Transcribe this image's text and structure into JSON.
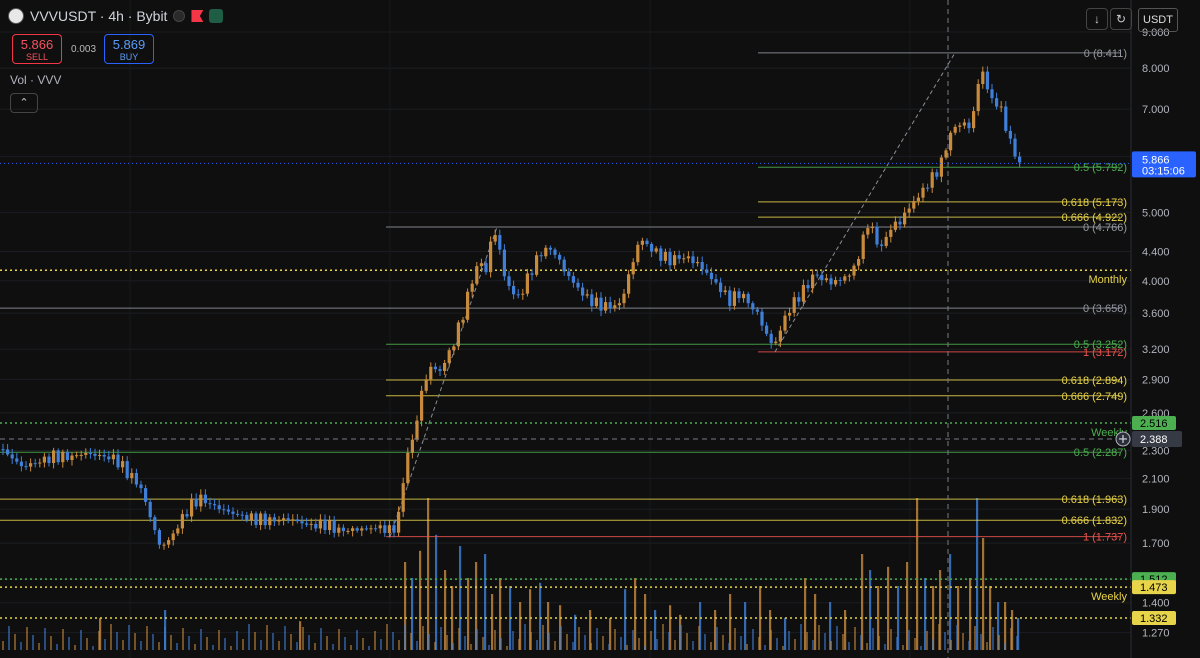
{
  "header": {
    "symbol": "VVVUSDT · 4h · Bybit"
  },
  "trade": {
    "sell_price": "5.866",
    "sell_label": "SELL",
    "spread": "0.003",
    "buy_price": "5.869",
    "buy_label": "BUY"
  },
  "vol_label": "Vol · VVV",
  "currency": "USDT",
  "colors": {
    "up": "#c88a3c",
    "down": "#3f7fd8",
    "gold": "#e8d44a",
    "green": "#4caf50",
    "red": "#ef5350",
    "gray": "#9598a1",
    "price": "#2962ff"
  },
  "chart_data": {
    "type": "candlestick",
    "ylim": [
      1.2,
      9.3
    ],
    "yscale": "log",
    "y_ticks": [
      "9.000",
      "8.000",
      "7.000",
      "6.000",
      "5.000",
      "4.400",
      "4.000",
      "3.600",
      "3.200",
      "2.900",
      "2.600",
      "2.300",
      "2.100",
      "1.900",
      "1.700",
      "1.512",
      "1.400",
      "1.270"
    ],
    "anchors": [
      [
        0,
        2.31
      ],
      [
        10,
        2.26
      ],
      [
        22,
        2.18
      ],
      [
        40,
        2.22
      ],
      [
        55,
        2.26
      ],
      [
        70,
        2.25
      ],
      [
        85,
        2.28
      ],
      [
        100,
        2.26
      ],
      [
        115,
        2.24
      ],
      [
        130,
        2.12
      ],
      [
        140,
        2.05
      ],
      [
        150,
        1.86
      ],
      [
        160,
        1.68
      ],
      [
        170,
        1.72
      ],
      [
        180,
        1.82
      ],
      [
        190,
        1.92
      ],
      [
        200,
        1.97
      ],
      [
        210,
        1.93
      ],
      [
        225,
        1.89
      ],
      [
        240,
        1.86
      ],
      [
        255,
        1.84
      ],
      [
        270,
        1.83
      ],
      [
        290,
        1.84
      ],
      [
        310,
        1.8
      ],
      [
        325,
        1.81
      ],
      [
        340,
        1.77
      ],
      [
        360,
        1.78
      ],
      [
        380,
        1.79
      ],
      [
        390,
        1.77
      ],
      [
        398,
        1.82
      ],
      [
        405,
        2.2
      ],
      [
        415,
        2.45
      ],
      [
        422,
        2.8
      ],
      [
        430,
        3.02
      ],
      [
        440,
        2.98
      ],
      [
        452,
        3.22
      ],
      [
        462,
        3.55
      ],
      [
        472,
        4.0
      ],
      [
        480,
        4.3
      ],
      [
        485,
        4.05
      ],
      [
        490,
        4.5
      ],
      [
        497,
        4.72
      ],
      [
        503,
        4.1
      ],
      [
        510,
        3.9
      ],
      [
        518,
        3.78
      ],
      [
        525,
        3.95
      ],
      [
        535,
        4.25
      ],
      [
        545,
        4.45
      ],
      [
        555,
        4.38
      ],
      [
        565,
        4.12
      ],
      [
        575,
        3.95
      ],
      [
        585,
        3.8
      ],
      [
        595,
        3.72
      ],
      [
        605,
        3.68
      ],
      [
        620,
        3.7
      ],
      [
        630,
        4.12
      ],
      [
        640,
        4.6
      ],
      [
        650,
        4.45
      ],
      [
        660,
        4.35
      ],
      [
        670,
        4.28
      ],
      [
        680,
        4.32
      ],
      [
        690,
        4.3
      ],
      [
        700,
        4.2
      ],
      [
        710,
        4.05
      ],
      [
        720,
        3.9
      ],
      [
        730,
        3.75
      ],
      [
        740,
        3.85
      ],
      [
        750,
        3.7
      ],
      [
        760,
        3.55
      ],
      [
        768,
        3.3
      ],
      [
        775,
        3.25
      ],
      [
        785,
        3.55
      ],
      [
        795,
        3.75
      ],
      [
        805,
        3.9
      ],
      [
        815,
        4.1
      ],
      [
        825,
        4.0
      ],
      [
        835,
        3.98
      ],
      [
        845,
        4.05
      ],
      [
        852,
        4.1
      ],
      [
        860,
        4.4
      ],
      [
        868,
        4.85
      ],
      [
        875,
        4.6
      ],
      [
        882,
        4.45
      ],
      [
        890,
        4.75
      ],
      [
        900,
        4.85
      ],
      [
        910,
        5.1
      ],
      [
        920,
        5.3
      ],
      [
        930,
        5.55
      ],
      [
        940,
        5.8
      ],
      [
        950,
        6.45
      ],
      [
        960,
        6.7
      ],
      [
        968,
        6.58
      ],
      [
        975,
        7.0
      ],
      [
        980,
        8.0
      ],
      [
        985,
        7.8
      ],
      [
        990,
        7.2
      ],
      [
        998,
        7.15
      ],
      [
        1005,
        6.7
      ],
      [
        1012,
        6.15
      ],
      [
        1020,
        5.87
      ]
    ],
    "volume": {
      "max": 1,
      "bars": [
        [
          100,
          0.2
        ],
        [
          165,
          0.25
        ],
        [
          300,
          0.18
        ],
        [
          405,
          0.55
        ],
        [
          412,
          0.45
        ],
        [
          420,
          0.62
        ],
        [
          428,
          0.95
        ],
        [
          436,
          0.72
        ],
        [
          445,
          0.5
        ],
        [
          452,
          0.4
        ],
        [
          460,
          0.65
        ],
        [
          468,
          0.45
        ],
        [
          476,
          0.55
        ],
        [
          485,
          0.6
        ],
        [
          492,
          0.35
        ],
        [
          500,
          0.45
        ],
        [
          510,
          0.4
        ],
        [
          520,
          0.3
        ],
        [
          530,
          0.38
        ],
        [
          540,
          0.42
        ],
        [
          548,
          0.3
        ],
        [
          560,
          0.28
        ],
        [
          575,
          0.22
        ],
        [
          590,
          0.25
        ],
        [
          610,
          0.2
        ],
        [
          625,
          0.38
        ],
        [
          635,
          0.45
        ],
        [
          645,
          0.35
        ],
        [
          655,
          0.25
        ],
        [
          670,
          0.28
        ],
        [
          680,
          0.22
        ],
        [
          700,
          0.3
        ],
        [
          715,
          0.25
        ],
        [
          730,
          0.35
        ],
        [
          745,
          0.3
        ],
        [
          760,
          0.4
        ],
        [
          770,
          0.25
        ],
        [
          785,
          0.2
        ],
        [
          805,
          0.45
        ],
        [
          815,
          0.35
        ],
        [
          830,
          0.3
        ],
        [
          845,
          0.25
        ],
        [
          862,
          0.6
        ],
        [
          870,
          0.5
        ],
        [
          878,
          0.4
        ],
        [
          888,
          0.52
        ],
        [
          898,
          0.4
        ],
        [
          907,
          0.55
        ],
        [
          917,
          0.95
        ],
        [
          925,
          0.45
        ],
        [
          933,
          0.4
        ],
        [
          940,
          0.5
        ],
        [
          950,
          0.6
        ],
        [
          958,
          0.4
        ],
        [
          970,
          0.45
        ],
        [
          977,
          0.95
        ],
        [
          983,
          0.7
        ],
        [
          990,
          0.4
        ],
        [
          998,
          0.3
        ],
        [
          1005,
          0.3
        ],
        [
          1012,
          0.25
        ],
        [
          1018,
          0.2
        ]
      ]
    },
    "fib_sets": [
      {
        "x0": 758,
        "x1": 1120,
        "levels": [
          {
            "label": "0 (8.411)",
            "value": 8.411,
            "color": "gray"
          },
          {
            "label": "0.5 (5.792)",
            "value": 5.792,
            "color": "green"
          },
          {
            "label": "0.618 (5.173)",
            "value": 5.173,
            "color": "gold"
          },
          {
            "label": "0.666 (4.922)",
            "value": 4.922,
            "color": "gold"
          },
          {
            "label": "1 (3.172)",
            "value": 3.172,
            "color": "red"
          }
        ]
      },
      {
        "x0": 386,
        "x1": 1120,
        "levels": [
          {
            "label": "0 (4.766)",
            "value": 4.766,
            "color": "gray"
          },
          {
            "label": "0.5 (3.252)",
            "value": 3.252,
            "color": "green"
          },
          {
            "label": "0.618 (2.894)",
            "value": 2.894,
            "color": "gold"
          },
          {
            "label": "0.666 (2.749)",
            "value": 2.749,
            "color": "gold"
          },
          {
            "label": "1 (1.737)",
            "value": 1.737,
            "color": "red"
          }
        ]
      },
      {
        "x0": 0,
        "x1": 1120,
        "levels": [
          {
            "label": "0 (3.658)",
            "value": 3.658,
            "color": "gray"
          },
          {
            "label": "0.5 (2.287)",
            "value": 2.287,
            "color": "green"
          },
          {
            "label": "0.618 (1.963)",
            "value": 1.963,
            "color": "gold"
          },
          {
            "label": "0.666 (1.832)",
            "value": 1.832,
            "color": "gold"
          }
        ]
      }
    ],
    "key_levels": [
      {
        "label": "Monthly",
        "value": 4.14,
        "color": "gold",
        "box": null
      },
      {
        "label": "Weekly",
        "value": 2.516,
        "color": "green",
        "box": "2.516"
      },
      {
        "label": "",
        "value": 1.512,
        "color": "green",
        "box": "1.512"
      },
      {
        "label": "Weekly",
        "value": 1.473,
        "color": "gold",
        "box": "1.473"
      },
      {
        "label": "",
        "value": 1.332,
        "color": "gold",
        "box": "1.332"
      }
    ],
    "current_price": {
      "value": 5.866,
      "label": "5.866",
      "timer": "03:15:06"
    },
    "crosshair": {
      "value": 2.388,
      "label": "2.388"
    },
    "trend_lines": [
      {
        "from": [
          775,
          3.172
        ],
        "to": [
          955,
          8.411
        ]
      },
      {
        "from": [
          390,
          1.737
        ],
        "to": [
          497,
          4.766
        ]
      }
    ]
  }
}
